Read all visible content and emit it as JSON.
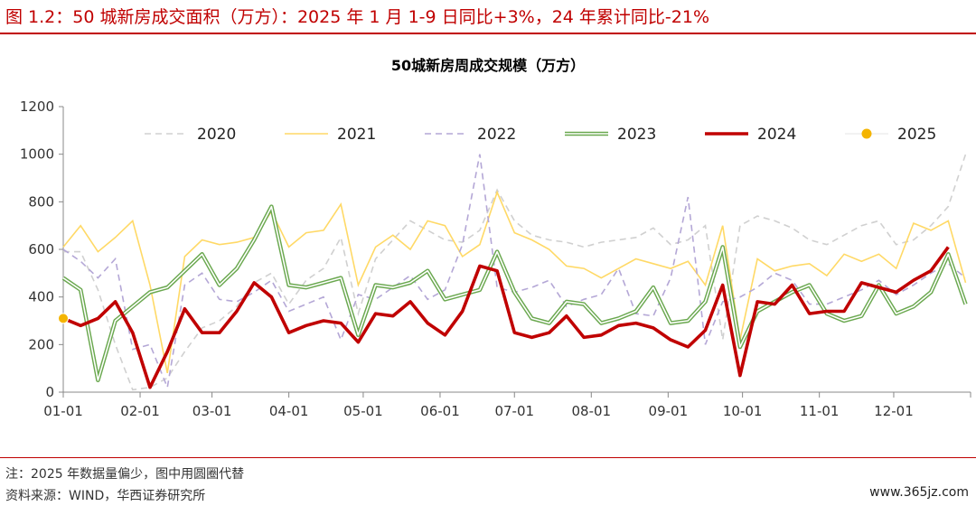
{
  "figure": {
    "title": "图 1.2：50 城新房成交面积（万方）：2025 年 1 月 1-9 日同比+3%，24 年累计同比-21%",
    "note": "注：2025 年数据量偏少，图中用圆圈代替",
    "source": "资料来源：WIND，华西证券研究所",
    "watermark": "www.365jz.com",
    "accent_color": "#c00000"
  },
  "chart_data": {
    "type": "line",
    "title": "50城新房周成交规模（万方）",
    "xlabel": "",
    "ylabel": "",
    "ylim": [
      0,
      1200
    ],
    "yticks": [
      0,
      200,
      400,
      600,
      800,
      1000,
      1200
    ],
    "xlim": [
      "01-01",
      "12-31"
    ],
    "xticks": [
      "01-01",
      "02-01",
      "03-01",
      "04-01",
      "05-01",
      "06-01",
      "07-01",
      "08-01",
      "09-01",
      "10-01",
      "11-01",
      "12-01"
    ],
    "x_unit": "week of year (MM-DD)",
    "grid": false,
    "legend": "top",
    "series": [
      {
        "name": "2020",
        "color": "#d0d0d0",
        "style": "dashed",
        "x": [
          "01-01",
          "01-08",
          "01-15",
          "01-22",
          "01-29",
          "02-05",
          "02-12",
          "02-19",
          "02-26",
          "03-04",
          "03-11",
          "03-18",
          "03-25",
          "04-01",
          "04-08",
          "04-15",
          "04-22",
          "04-29",
          "05-06",
          "05-13",
          "05-20",
          "05-27",
          "06-03",
          "06-10",
          "06-17",
          "06-24",
          "07-01",
          "07-08",
          "07-15",
          "07-22",
          "07-29",
          "08-05",
          "08-12",
          "08-19",
          "08-26",
          "09-02",
          "09-09",
          "09-16",
          "09-23",
          "09-30",
          "10-07",
          "10-14",
          "10-21",
          "10-28",
          "11-04",
          "11-11",
          "11-18",
          "11-25",
          "12-02",
          "12-09",
          "12-16",
          "12-23",
          "12-30"
        ],
        "values": [
          590,
          590,
          430,
          200,
          10,
          20,
          60,
          170,
          270,
          300,
          360,
          460,
          500,
          370,
          470,
          520,
          650,
          330,
          560,
          640,
          720,
          680,
          640,
          630,
          680,
          850,
          720,
          660,
          640,
          630,
          610,
          630,
          640,
          650,
          690,
          620,
          640,
          700,
          220,
          700,
          740,
          720,
          690,
          640,
          620,
          660,
          700,
          720,
          620,
          640,
          700,
          780,
          1000
        ]
      },
      {
        "name": "2021",
        "color": "#ffd966",
        "style": "solid",
        "x": [
          "01-01",
          "01-08",
          "01-15",
          "01-22",
          "01-29",
          "02-05",
          "02-12",
          "02-19",
          "02-26",
          "03-04",
          "03-11",
          "03-18",
          "03-25",
          "04-01",
          "04-08",
          "04-15",
          "04-22",
          "04-29",
          "05-06",
          "05-13",
          "05-20",
          "05-27",
          "06-03",
          "06-10",
          "06-17",
          "06-24",
          "07-01",
          "07-08",
          "07-15",
          "07-22",
          "07-29",
          "08-05",
          "08-12",
          "08-19",
          "08-26",
          "09-02",
          "09-09",
          "09-16",
          "09-23",
          "09-30",
          "10-07",
          "10-14",
          "10-21",
          "10-28",
          "11-04",
          "11-11",
          "11-18",
          "11-25",
          "12-02",
          "12-09",
          "12-16",
          "12-23",
          "12-30"
        ],
        "values": [
          610,
          700,
          590,
          650,
          720,
          450,
          80,
          570,
          640,
          620,
          630,
          650,
          760,
          610,
          670,
          680,
          790,
          450,
          610,
          660,
          600,
          720,
          700,
          570,
          620,
          840,
          670,
          640,
          600,
          530,
          520,
          480,
          520,
          560,
          540,
          520,
          550,
          450,
          700,
          220,
          560,
          510,
          530,
          540,
          490,
          580,
          550,
          580,
          520,
          710,
          680,
          720,
          460
        ]
      },
      {
        "name": "2022",
        "color": "#b4a7d6",
        "style": "dashed",
        "x": [
          "01-01",
          "01-08",
          "01-15",
          "01-22",
          "01-29",
          "02-05",
          "02-12",
          "02-19",
          "02-26",
          "03-04",
          "03-11",
          "03-18",
          "03-25",
          "04-01",
          "04-08",
          "04-15",
          "04-22",
          "04-29",
          "05-06",
          "05-13",
          "05-20",
          "05-27",
          "06-03",
          "06-10",
          "06-17",
          "06-24",
          "07-01",
          "07-08",
          "07-15",
          "07-22",
          "07-29",
          "08-05",
          "08-12",
          "08-19",
          "08-26",
          "09-02",
          "09-09",
          "09-16",
          "09-23",
          "09-30",
          "10-07",
          "10-14",
          "10-21",
          "10-28",
          "11-04",
          "11-11",
          "11-18",
          "11-25",
          "12-02",
          "12-09",
          "12-16",
          "12-23",
          "12-30"
        ],
        "values": [
          600,
          550,
          480,
          560,
          180,
          200,
          20,
          450,
          500,
          390,
          380,
          420,
          470,
          340,
          370,
          400,
          220,
          410,
          390,
          440,
          490,
          390,
          430,
          620,
          1000,
          440,
          420,
          440,
          470,
          360,
          390,
          410,
          520,
          330,
          320,
          480,
          820,
          200,
          380,
          400,
          440,
          500,
          470,
          370,
          370,
          400,
          430,
          470,
          410,
          450,
          500,
          540,
          480
        ]
      },
      {
        "name": "2023",
        "color": "#6aa84f",
        "style": "double",
        "x": [
          "01-01",
          "01-08",
          "01-15",
          "01-22",
          "01-29",
          "02-05",
          "02-12",
          "02-19",
          "02-26",
          "03-04",
          "03-11",
          "03-18",
          "03-25",
          "04-01",
          "04-08",
          "04-15",
          "04-22",
          "04-29",
          "05-06",
          "05-13",
          "05-20",
          "05-27",
          "06-03",
          "06-10",
          "06-17",
          "06-24",
          "07-01",
          "07-08",
          "07-15",
          "07-22",
          "07-29",
          "08-05",
          "08-12",
          "08-19",
          "08-26",
          "09-02",
          "09-09",
          "09-16",
          "09-23",
          "09-30",
          "10-07",
          "10-14",
          "10-21",
          "10-28",
          "11-04",
          "11-11",
          "11-18",
          "11-25",
          "12-02",
          "12-09",
          "12-16",
          "12-23",
          "12-30"
        ],
        "values": [
          480,
          430,
          50,
          300,
          360,
          420,
          440,
          510,
          580,
          450,
          520,
          640,
          780,
          450,
          440,
          460,
          480,
          240,
          450,
          440,
          460,
          510,
          390,
          410,
          430,
          590,
          420,
          310,
          290,
          380,
          370,
          290,
          310,
          340,
          440,
          290,
          300,
          380,
          610,
          190,
          340,
          380,
          420,
          450,
          330,
          300,
          320,
          450,
          330,
          360,
          420,
          580,
          370
        ]
      },
      {
        "name": "2024",
        "color": "#c00000",
        "style": "thick",
        "x": [
          "01-01",
          "01-08",
          "01-15",
          "01-22",
          "01-29",
          "02-05",
          "02-12",
          "02-19",
          "02-26",
          "03-04",
          "03-11",
          "03-18",
          "03-25",
          "04-01",
          "04-08",
          "04-15",
          "04-22",
          "04-29",
          "05-06",
          "05-13",
          "05-20",
          "05-27",
          "06-03",
          "06-10",
          "06-17",
          "06-24",
          "07-01",
          "07-08",
          "07-15",
          "07-22",
          "07-29",
          "08-05",
          "08-12",
          "08-19",
          "08-26",
          "09-02",
          "09-09",
          "09-16",
          "09-23",
          "09-30",
          "10-07",
          "10-14",
          "10-21",
          "10-28",
          "11-04",
          "11-11",
          "11-18",
          "11-25",
          "12-02",
          "12-09",
          "12-16",
          "12-23",
          "12-30"
        ],
        "values": [
          310,
          280,
          310,
          380,
          250,
          20,
          170,
          350,
          250,
          250,
          340,
          460,
          400,
          250,
          280,
          300,
          290,
          210,
          330,
          320,
          380,
          290,
          240,
          340,
          530,
          510,
          250,
          230,
          250,
          320,
          230,
          240,
          280,
          290,
          270,
          220,
          190,
          260,
          450,
          70,
          380,
          370,
          450,
          330,
          340,
          340,
          460,
          440,
          420,
          470,
          510,
          610,
          null
        ]
      },
      {
        "name": "2025",
        "color": "#f4b400",
        "style": "marker",
        "x": [
          "01-01"
        ],
        "values": [
          310
        ]
      }
    ]
  }
}
